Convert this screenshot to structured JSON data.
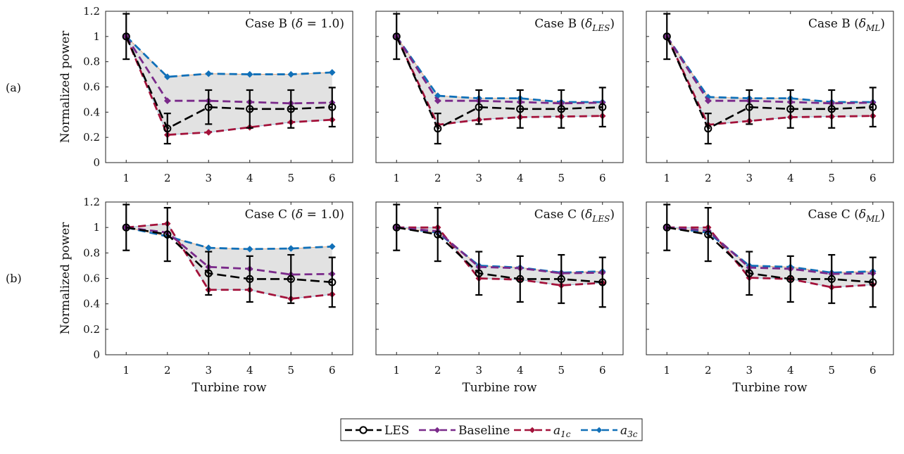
{
  "figure": {
    "row_labels": [
      "(a)",
      "(b)"
    ],
    "legend": [
      {
        "name": "LES",
        "sub": "",
        "color": "#000000"
      },
      {
        "name": "Baseline",
        "sub": "",
        "color": "#7a2a8a"
      },
      {
        "name": "a",
        "sub": "1c",
        "color": "#a3123a"
      },
      {
        "name": "a",
        "sub": "3c",
        "color": "#1170b8"
      }
    ]
  },
  "chart_data": [
    {
      "type": "line",
      "title_prefix": "Case B (",
      "title_var": "δ",
      "title_sub": "",
      "title_suffix": " = 1.0)",
      "xlabel": "",
      "ylabel": "Normalized power",
      "x": [
        1,
        2,
        3,
        4,
        5,
        6
      ],
      "xlim": [
        0.5,
        6.5
      ],
      "ylim": [
        0,
        1.2
      ],
      "yticks": [
        "0",
        "0.2",
        "0.4",
        "0.6",
        "0.8",
        "1",
        "1.2"
      ],
      "xticks": [
        "1",
        "2",
        "3",
        "4",
        "5",
        "6"
      ],
      "series": [
        {
          "name": "LES",
          "values": [
            1.0,
            0.27,
            0.44,
            0.425,
            0.425,
            0.44
          ],
          "err": [
            0.18,
            0.12,
            0.135,
            0.15,
            0.15,
            0.155
          ]
        },
        {
          "name": "Baseline",
          "values": [
            1.0,
            0.49,
            0.49,
            0.48,
            0.47,
            0.475
          ]
        },
        {
          "name": "a1c",
          "values": [
            1.0,
            0.22,
            0.24,
            0.28,
            0.32,
            0.34
          ]
        },
        {
          "name": "a3c",
          "values": [
            1.0,
            0.68,
            0.705,
            0.7,
            0.7,
            0.715
          ]
        }
      ]
    },
    {
      "type": "line",
      "title_prefix": "Case B (",
      "title_var": "δ",
      "title_sub": "LES",
      "title_suffix": ")",
      "xlabel": "",
      "ylabel": "",
      "x": [
        1,
        2,
        3,
        4,
        5,
        6
      ],
      "xlim": [
        0.5,
        6.5
      ],
      "ylim": [
        0,
        1.2
      ],
      "yticks": [],
      "xticks": [
        "1",
        "2",
        "3",
        "4",
        "5",
        "6"
      ],
      "series": [
        {
          "name": "LES",
          "values": [
            1.0,
            0.27,
            0.44,
            0.425,
            0.425,
            0.44
          ],
          "err": [
            0.18,
            0.12,
            0.135,
            0.15,
            0.15,
            0.155
          ]
        },
        {
          "name": "Baseline",
          "values": [
            1.0,
            0.49,
            0.49,
            0.48,
            0.47,
            0.475
          ]
        },
        {
          "name": "a1c",
          "values": [
            1.0,
            0.3,
            0.34,
            0.36,
            0.365,
            0.37
          ]
        },
        {
          "name": "a3c",
          "values": [
            1.0,
            0.53,
            0.51,
            0.51,
            0.48,
            0.48
          ]
        }
      ]
    },
    {
      "type": "line",
      "title_prefix": "Case B (",
      "title_var": "δ",
      "title_sub": "ML",
      "title_suffix": ")",
      "xlabel": "",
      "ylabel": "",
      "x": [
        1,
        2,
        3,
        4,
        5,
        6
      ],
      "xlim": [
        0.5,
        6.5
      ],
      "ylim": [
        0,
        1.2
      ],
      "yticks": [],
      "xticks": [
        "1",
        "2",
        "3",
        "4",
        "5",
        "6"
      ],
      "series": [
        {
          "name": "LES",
          "values": [
            1.0,
            0.27,
            0.44,
            0.425,
            0.425,
            0.44
          ],
          "err": [
            0.18,
            0.12,
            0.135,
            0.15,
            0.15,
            0.155
          ]
        },
        {
          "name": "Baseline",
          "values": [
            1.0,
            0.49,
            0.49,
            0.48,
            0.47,
            0.475
          ]
        },
        {
          "name": "a1c",
          "values": [
            1.0,
            0.3,
            0.33,
            0.36,
            0.365,
            0.37
          ]
        },
        {
          "name": "a3c",
          "values": [
            1.0,
            0.52,
            0.51,
            0.51,
            0.48,
            0.48
          ]
        }
      ]
    },
    {
      "type": "line",
      "title_prefix": "Case C (",
      "title_var": "δ",
      "title_sub": "",
      "title_suffix": " = 1.0)",
      "xlabel": "Turbine row",
      "ylabel": "Normalized power",
      "x": [
        1,
        2,
        3,
        4,
        5,
        6
      ],
      "xlim": [
        0.5,
        6.5
      ],
      "ylim": [
        0,
        1.2
      ],
      "yticks": [
        "0",
        "0.2",
        "0.4",
        "0.6",
        "0.8",
        "1",
        "1.2"
      ],
      "xticks": [
        "1",
        "2",
        "3",
        "4",
        "5",
        "6"
      ],
      "series": [
        {
          "name": "LES",
          "values": [
            1.0,
            0.945,
            0.64,
            0.595,
            0.595,
            0.57
          ],
          "err": [
            0.18,
            0.21,
            0.17,
            0.18,
            0.19,
            0.195
          ]
        },
        {
          "name": "Baseline",
          "values": [
            1.0,
            0.96,
            0.69,
            0.675,
            0.63,
            0.635
          ]
        },
        {
          "name": "a1c",
          "values": [
            1.0,
            1.03,
            0.51,
            0.51,
            0.44,
            0.475
          ]
        },
        {
          "name": "a3c",
          "values": [
            1.0,
            0.93,
            0.84,
            0.83,
            0.835,
            0.85
          ]
        }
      ]
    },
    {
      "type": "line",
      "title_prefix": "Case C (",
      "title_var": "δ",
      "title_sub": "LES",
      "title_suffix": ")",
      "xlabel": "Turbine row",
      "ylabel": "",
      "x": [
        1,
        2,
        3,
        4,
        5,
        6
      ],
      "xlim": [
        0.5,
        6.5
      ],
      "ylim": [
        0,
        1.2
      ],
      "yticks": [],
      "xticks": [
        "1",
        "2",
        "3",
        "4",
        "5",
        "6"
      ],
      "series": [
        {
          "name": "LES",
          "values": [
            1.0,
            0.945,
            0.64,
            0.595,
            0.595,
            0.57
          ],
          "err": [
            0.18,
            0.21,
            0.17,
            0.18,
            0.19,
            0.195
          ]
        },
        {
          "name": "Baseline",
          "values": [
            1.0,
            0.97,
            0.69,
            0.68,
            0.64,
            0.645
          ]
        },
        {
          "name": "a1c",
          "values": [
            1.0,
            1.0,
            0.6,
            0.59,
            0.545,
            0.565
          ]
        },
        {
          "name": "a3c",
          "values": [
            1.0,
            0.96,
            0.7,
            0.685,
            0.645,
            0.655
          ]
        }
      ]
    },
    {
      "type": "line",
      "title_prefix": "Case C (",
      "title_var": "δ",
      "title_sub": "ML",
      "title_suffix": ")",
      "xlabel": "Turbine row",
      "ylabel": "",
      "x": [
        1,
        2,
        3,
        4,
        5,
        6
      ],
      "xlim": [
        0.5,
        6.5
      ],
      "ylim": [
        0,
        1.2
      ],
      "yticks": [],
      "xticks": [
        "1",
        "2",
        "3",
        "4",
        "5",
        "6"
      ],
      "series": [
        {
          "name": "LES",
          "values": [
            1.0,
            0.945,
            0.64,
            0.595,
            0.595,
            0.57
          ],
          "err": [
            0.18,
            0.21,
            0.17,
            0.18,
            0.19,
            0.195
          ]
        },
        {
          "name": "Baseline",
          "values": [
            1.0,
            0.975,
            0.685,
            0.675,
            0.635,
            0.64
          ]
        },
        {
          "name": "a1c",
          "values": [
            1.0,
            1.0,
            0.605,
            0.595,
            0.53,
            0.55
          ]
        },
        {
          "name": "a3c",
          "values": [
            1.0,
            0.96,
            0.7,
            0.69,
            0.645,
            0.655
          ]
        }
      ]
    }
  ]
}
